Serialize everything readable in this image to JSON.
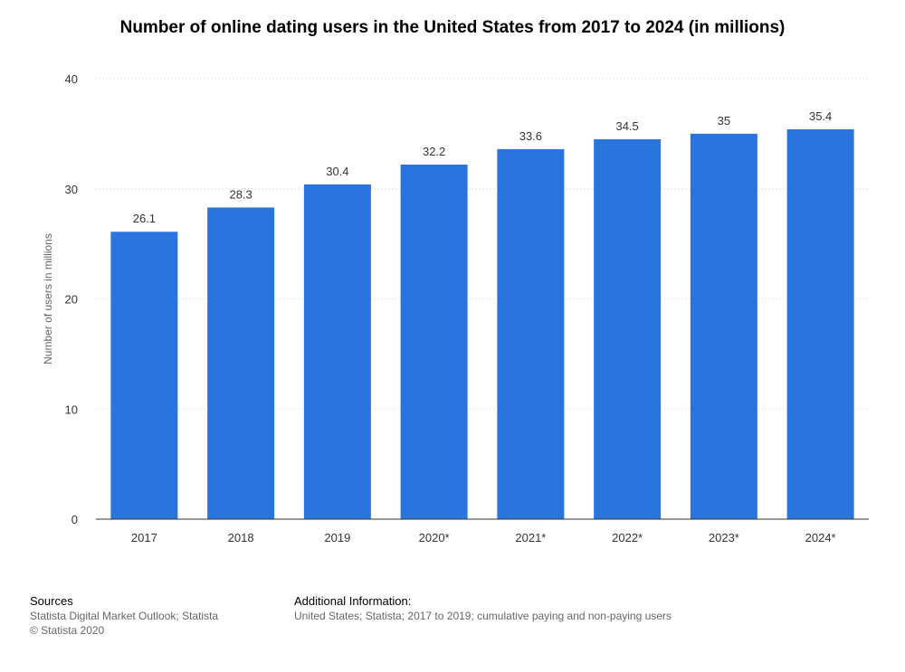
{
  "chart_data": {
    "type": "bar",
    "title": "Number of online dating users in the United States from 2017 to 2024 (in millions)",
    "ylabel": "Number of users in millions",
    "xlabel": "",
    "categories": [
      "2017",
      "2018",
      "2019",
      "2020*",
      "2021*",
      "2022*",
      "2023*",
      "2024*"
    ],
    "values": [
      26.1,
      28.3,
      30.4,
      32.2,
      33.6,
      34.5,
      35,
      35.4
    ],
    "value_labels": [
      "26.1",
      "28.3",
      "30.4",
      "32.2",
      "33.6",
      "34.5",
      "35",
      "35.4"
    ],
    "ylim": [
      0,
      40
    ],
    "yticks": [
      0,
      10,
      20,
      30,
      40
    ],
    "grid": true,
    "bar_color": "#2a75dd"
  },
  "footer": {
    "sources_heading": "Sources",
    "sources_line1": "Statista Digital Market Outlook; Statista",
    "sources_line2": "© Statista 2020",
    "additional_heading": "Additional Information:",
    "additional_line1": "United States; Statista; 2017 to 2019; cumulative paying and non-paying users"
  }
}
